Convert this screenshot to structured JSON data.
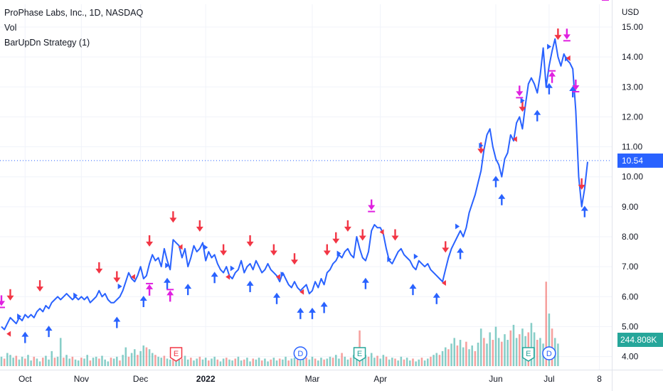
{
  "legend": {
    "symbol_line": "ProPhase Labs, Inc., 1D, NASDAQ",
    "vol_label": "Vol",
    "strategy_label": "BarUpDn Strategy (1)"
  },
  "colors": {
    "price_line": "#2962ff",
    "long_entry": "#2962ff",
    "short_entry": "#f23645",
    "exit": "#e020e0",
    "vol_up": "#26a69a",
    "vol_down": "#ef5350",
    "price_badge": "#2962ff",
    "vol_badge": "#26a69a",
    "earnings": "#f23645",
    "dividend": "#2962ff",
    "earnings_green": "#26a69a"
  },
  "chart_data": {
    "type": "line",
    "title": "ProPhase Labs, Inc., 1D, NASDAQ",
    "xlabel": "",
    "ylabel": "USD",
    "ylim": [
      3.8,
      15.45
    ],
    "grid": true,
    "x_tick_labels": [
      "Oct",
      "Nov",
      "Dec",
      "2022",
      "Mar",
      "Apr",
      "Jun",
      "Jul",
      "8"
    ],
    "x_tick_index": [
      8,
      27,
      47,
      69,
      105,
      128,
      167,
      185,
      202
    ],
    "y_ticks": [
      4.0,
      5.0,
      6.0,
      7.0,
      8.0,
      9.0,
      10.0,
      11.0,
      12.0,
      13.0,
      14.0,
      15.0
    ],
    "y_tick_labels": [
      "4.00",
      "5.00",
      "6.00",
      "7.00",
      "8.00",
      "9.00",
      "10.00",
      "11.00",
      "12.00",
      "13.00",
      "14.00",
      "15.00"
    ],
    "last_price": 10.54,
    "last_price_label": "10.54",
    "last_volume_label": "244.808K",
    "series": [
      {
        "name": "",
        "values": [
          5.0,
          4.9,
          5.1,
          5.3,
          5.2,
          5.1,
          5.3,
          5.2,
          5.4,
          5.3,
          5.4,
          5.3,
          5.5,
          5.6,
          5.5,
          5.7,
          5.6,
          5.8,
          5.9,
          6.0,
          5.9,
          6.0,
          6.1,
          6.0,
          5.9,
          6.0,
          5.9,
          6.0,
          5.9,
          6.0,
          5.8,
          5.9,
          6.0,
          6.2,
          6.0,
          6.1,
          5.9,
          5.8,
          5.8,
          5.9,
          6.0,
          6.2,
          6.5,
          6.8,
          6.6,
          6.5,
          6.7,
          7.0,
          6.6,
          6.7,
          7.1,
          7.4,
          7.2,
          7.3,
          7.0,
          7.6,
          7.2,
          6.9,
          7.9,
          7.8,
          7.7,
          7.3,
          7.6,
          7.0,
          7.3,
          7.7,
          7.5,
          7.6,
          7.8,
          7.2,
          7.5,
          7.3,
          7.4,
          7.1,
          6.9,
          6.8,
          7.0,
          6.7,
          6.6,
          6.8,
          6.9,
          7.2,
          6.8,
          7.0,
          7.1,
          6.9,
          7.2,
          7.0,
          6.8,
          6.9,
          7.1,
          6.9,
          6.8,
          6.7,
          6.5,
          6.8,
          6.6,
          6.4,
          6.3,
          6.5,
          6.3,
          6.2,
          6.3,
          6.4,
          6.1,
          6.2,
          6.5,
          6.3,
          6.6,
          6.4,
          6.8,
          6.9,
          7.1,
          7.2,
          7.4,
          7.3,
          7.5,
          7.6,
          7.4,
          7.3,
          8.0,
          7.6,
          7.3,
          7.2,
          7.5,
          8.2,
          8.4,
          8.3,
          8.3,
          8.1,
          7.6,
          7.2,
          7.1,
          7.3,
          7.5,
          7.6,
          7.4,
          7.3,
          7.2,
          7.0,
          6.9,
          7.2,
          7.1,
          7.0,
          7.1,
          6.9,
          6.8,
          6.7,
          6.6,
          6.5,
          6.9,
          7.3,
          7.6,
          7.8,
          8.0,
          8.2,
          8.0,
          8.3,
          8.8,
          9.1,
          9.4,
          9.8,
          10.2,
          10.9,
          11.4,
          11.6,
          11.0,
          10.6,
          10.4,
          10.0,
          10.6,
          10.8,
          11.4,
          11.2,
          11.8,
          12.0,
          11.6,
          12.4,
          13.1,
          13.3,
          13.1,
          12.8,
          13.4,
          14.3,
          13.0,
          13.7,
          14.2,
          14.6,
          14.0,
          13.7,
          14.1,
          13.9,
          13.8,
          13.6,
          12.2,
          10.0,
          9.0,
          9.6,
          10.5
        ]
      }
    ],
    "volume": [
      {
        "up": true,
        "h": 0.1
      },
      {
        "up": false,
        "h": 0.08
      },
      {
        "up": true,
        "h": 0.14
      },
      {
        "up": true,
        "h": 0.12
      },
      {
        "up": true,
        "h": 0.09
      },
      {
        "up": false,
        "h": 0.11
      },
      {
        "up": true,
        "h": 0.07
      },
      {
        "up": true,
        "h": 0.1
      },
      {
        "up": false,
        "h": 0.08
      },
      {
        "up": true,
        "h": 0.12
      },
      {
        "up": true,
        "h": 0.06
      },
      {
        "up": false,
        "h": 0.1
      },
      {
        "up": true,
        "h": 0.08
      },
      {
        "up": true,
        "h": 0.05
      },
      {
        "up": false,
        "h": 0.09
      },
      {
        "up": true,
        "h": 0.11
      },
      {
        "up": true,
        "h": 0.07
      },
      {
        "up": true,
        "h": 0.16
      },
      {
        "up": false,
        "h": 0.09
      },
      {
        "up": true,
        "h": 0.1
      },
      {
        "up": true,
        "h": 0.3
      },
      {
        "up": false,
        "h": 0.09
      },
      {
        "up": true,
        "h": 0.12
      },
      {
        "up": true,
        "h": 0.08
      },
      {
        "up": false,
        "h": 0.1
      },
      {
        "up": true,
        "h": 0.07
      },
      {
        "up": true,
        "h": 0.06
      },
      {
        "up": false,
        "h": 0.09
      },
      {
        "up": true,
        "h": 0.08
      },
      {
        "up": true,
        "h": 0.12
      },
      {
        "up": false,
        "h": 0.06
      },
      {
        "up": true,
        "h": 0.09
      },
      {
        "up": true,
        "h": 0.1
      },
      {
        "up": false,
        "h": 0.08
      },
      {
        "up": true,
        "h": 0.11
      },
      {
        "up": true,
        "h": 0.07
      },
      {
        "up": true,
        "h": 0.05
      },
      {
        "up": false,
        "h": 0.09
      },
      {
        "up": true,
        "h": 0.08
      },
      {
        "up": true,
        "h": 0.1
      },
      {
        "up": false,
        "h": 0.06
      },
      {
        "up": true,
        "h": 0.12
      },
      {
        "up": true,
        "h": 0.2
      },
      {
        "up": false,
        "h": 0.1
      },
      {
        "up": true,
        "h": 0.14
      },
      {
        "up": true,
        "h": 0.18
      },
      {
        "up": false,
        "h": 0.12
      },
      {
        "up": true,
        "h": 0.16
      },
      {
        "up": true,
        "h": 0.22
      },
      {
        "up": false,
        "h": 0.2
      },
      {
        "up": true,
        "h": 0.18
      },
      {
        "up": true,
        "h": 0.14
      },
      {
        "up": false,
        "h": 0.12
      },
      {
        "up": true,
        "h": 0.1
      },
      {
        "up": true,
        "h": 0.09
      },
      {
        "up": false,
        "h": 0.11
      },
      {
        "up": true,
        "h": 0.08
      },
      {
        "up": true,
        "h": 0.07
      },
      {
        "up": false,
        "h": 0.12
      },
      {
        "up": true,
        "h": 0.1
      },
      {
        "up": true,
        "h": 0.09
      },
      {
        "up": false,
        "h": 0.08
      },
      {
        "up": true,
        "h": 0.11
      },
      {
        "up": true,
        "h": 0.07
      },
      {
        "up": false,
        "h": 0.09
      },
      {
        "up": true,
        "h": 0.06
      },
      {
        "up": true,
        "h": 0.08
      },
      {
        "up": false,
        "h": 0.1
      },
      {
        "up": true,
        "h": 0.07
      },
      {
        "up": true,
        "h": 0.09
      },
      {
        "up": false,
        "h": 0.06
      },
      {
        "up": true,
        "h": 0.08
      },
      {
        "up": true,
        "h": 0.1
      },
      {
        "up": false,
        "h": 0.07
      },
      {
        "up": true,
        "h": 0.05
      },
      {
        "up": true,
        "h": 0.08
      },
      {
        "up": false,
        "h": 0.09
      },
      {
        "up": true,
        "h": 0.07
      },
      {
        "up": true,
        "h": 0.06
      },
      {
        "up": false,
        "h": 0.08
      },
      {
        "up": true,
        "h": 0.1
      },
      {
        "up": true,
        "h": 0.06
      },
      {
        "up": false,
        "h": 0.07
      },
      {
        "up": true,
        "h": 0.09
      },
      {
        "up": true,
        "h": 0.05
      },
      {
        "up": false,
        "h": 0.08
      },
      {
        "up": true,
        "h": 0.07
      },
      {
        "up": true,
        "h": 0.09
      },
      {
        "up": false,
        "h": 0.06
      },
      {
        "up": true,
        "h": 0.08
      },
      {
        "up": true,
        "h": 0.05
      },
      {
        "up": false,
        "h": 0.07
      },
      {
        "up": true,
        "h": 0.09
      },
      {
        "up": true,
        "h": 0.06
      },
      {
        "up": false,
        "h": 0.08
      },
      {
        "up": true,
        "h": 0.07
      },
      {
        "up": true,
        "h": 0.1
      },
      {
        "up": false,
        "h": 0.06
      },
      {
        "up": true,
        "h": 0.08
      },
      {
        "up": true,
        "h": 0.09
      },
      {
        "up": false,
        "h": 0.07
      },
      {
        "up": true,
        "h": 0.06
      },
      {
        "up": true,
        "h": 0.08
      },
      {
        "up": false,
        "h": 0.09
      },
      {
        "up": true,
        "h": 0.07
      },
      {
        "up": true,
        "h": 0.1
      },
      {
        "up": false,
        "h": 0.08
      },
      {
        "up": true,
        "h": 0.06
      },
      {
        "up": true,
        "h": 0.09
      },
      {
        "up": false,
        "h": 0.07
      },
      {
        "up": true,
        "h": 0.08
      },
      {
        "up": true,
        "h": 0.1
      },
      {
        "up": false,
        "h": 0.09
      },
      {
        "up": true,
        "h": 0.12
      },
      {
        "up": true,
        "h": 0.08
      },
      {
        "up": false,
        "h": 0.14
      },
      {
        "up": true,
        "h": 0.1
      },
      {
        "up": true,
        "h": 0.07
      },
      {
        "up": false,
        "h": 0.09
      },
      {
        "up": true,
        "h": 0.12
      },
      {
        "up": true,
        "h": 0.1
      },
      {
        "up": false,
        "h": 0.38
      },
      {
        "up": true,
        "h": 0.15
      },
      {
        "up": true,
        "h": 0.12
      },
      {
        "up": false,
        "h": 0.1
      },
      {
        "up": true,
        "h": 0.14
      },
      {
        "up": true,
        "h": 0.09
      },
      {
        "up": false,
        "h": 0.11
      },
      {
        "up": true,
        "h": 0.08
      },
      {
        "up": true,
        "h": 0.12
      },
      {
        "up": false,
        "h": 0.1
      },
      {
        "up": true,
        "h": 0.07
      },
      {
        "up": true,
        "h": 0.09
      },
      {
        "up": false,
        "h": 0.08
      },
      {
        "up": true,
        "h": 0.06
      },
      {
        "up": true,
        "h": 0.1
      },
      {
        "up": false,
        "h": 0.07
      },
      {
        "up": true,
        "h": 0.09
      },
      {
        "up": true,
        "h": 0.06
      },
      {
        "up": false,
        "h": 0.08
      },
      {
        "up": true,
        "h": 0.05
      },
      {
        "up": true,
        "h": 0.07
      },
      {
        "up": false,
        "h": 0.09
      },
      {
        "up": true,
        "h": 0.06
      },
      {
        "up": true,
        "h": 0.08
      },
      {
        "up": false,
        "h": 0.1
      },
      {
        "up": true,
        "h": 0.12
      },
      {
        "up": true,
        "h": 0.14
      },
      {
        "up": false,
        "h": 0.12
      },
      {
        "up": true,
        "h": 0.16
      },
      {
        "up": true,
        "h": 0.2
      },
      {
        "up": false,
        "h": 0.18
      },
      {
        "up": true,
        "h": 0.24
      },
      {
        "up": true,
        "h": 0.3
      },
      {
        "up": false,
        "h": 0.22
      },
      {
        "up": true,
        "h": 0.28
      },
      {
        "up": true,
        "h": 0.2
      },
      {
        "up": false,
        "h": 0.26
      },
      {
        "up": true,
        "h": 0.18
      },
      {
        "up": true,
        "h": 0.22
      },
      {
        "up": false,
        "h": 0.16
      },
      {
        "up": true,
        "h": 0.25
      },
      {
        "up": true,
        "h": 0.4
      },
      {
        "up": false,
        "h": 0.3
      },
      {
        "up": true,
        "h": 0.24
      },
      {
        "up": true,
        "h": 0.36
      },
      {
        "up": false,
        "h": 0.28
      },
      {
        "up": true,
        "h": 0.42
      },
      {
        "up": true,
        "h": 0.3
      },
      {
        "up": false,
        "h": 0.26
      },
      {
        "up": true,
        "h": 0.34
      },
      {
        "up": true,
        "h": 0.28
      },
      {
        "up": false,
        "h": 0.38
      },
      {
        "up": true,
        "h": 0.44
      },
      {
        "up": true,
        "h": 0.3
      },
      {
        "up": false,
        "h": 0.34
      },
      {
        "up": true,
        "h": 0.4
      },
      {
        "up": true,
        "h": 0.32
      },
      {
        "up": false,
        "h": 0.36
      },
      {
        "up": true,
        "h": 0.46
      },
      {
        "up": true,
        "h": 0.36
      },
      {
        "up": false,
        "h": 0.28
      },
      {
        "up": true,
        "h": 0.3
      },
      {
        "up": true,
        "h": 0.24
      },
      {
        "up": false,
        "h": 0.9
      },
      {
        "up": true,
        "h": 0.56
      },
      {
        "up": false,
        "h": 0.4
      },
      {
        "up": true,
        "h": 0.3
      },
      {
        "up": true,
        "h": 0.24
      }
    ],
    "events": [
      {
        "type": "E",
        "index": 59,
        "style": "earnings"
      },
      {
        "type": "D",
        "index": 101,
        "style": "dividend"
      },
      {
        "type": "E",
        "index": 121,
        "style": "earnings_green"
      },
      {
        "type": "E",
        "index": 178,
        "style": "earnings_green"
      },
      {
        "type": "D",
        "index": 185,
        "style": "dividend"
      }
    ],
    "markers": {
      "long": [
        8,
        16,
        39,
        48,
        56,
        63,
        72,
        84,
        93,
        101,
        105,
        109,
        123,
        139,
        147,
        155,
        167,
        169,
        181,
        185,
        193,
        197,
        202
      ],
      "short": [
        3,
        13,
        33,
        39,
        50,
        58,
        67,
        75,
        84,
        92,
        99,
        110,
        113,
        117,
        122,
        133,
        150,
        162,
        176,
        188,
        196,
        199
      ],
      "long_tri": [
        7,
        26,
        41,
        57,
        70,
        79,
        96,
        115,
        132,
        141,
        155,
        163,
        177,
        186,
        192,
        199
      ],
      "short_tri": [
        1,
        43,
        59,
        75,
        92,
        100,
        127,
        148,
        172,
        190,
        200,
        206
      ],
      "exit_down": [
        0,
        125,
        175,
        191,
        194
      ],
      "exit_up": [
        50,
        57,
        186,
        204
      ]
    }
  }
}
